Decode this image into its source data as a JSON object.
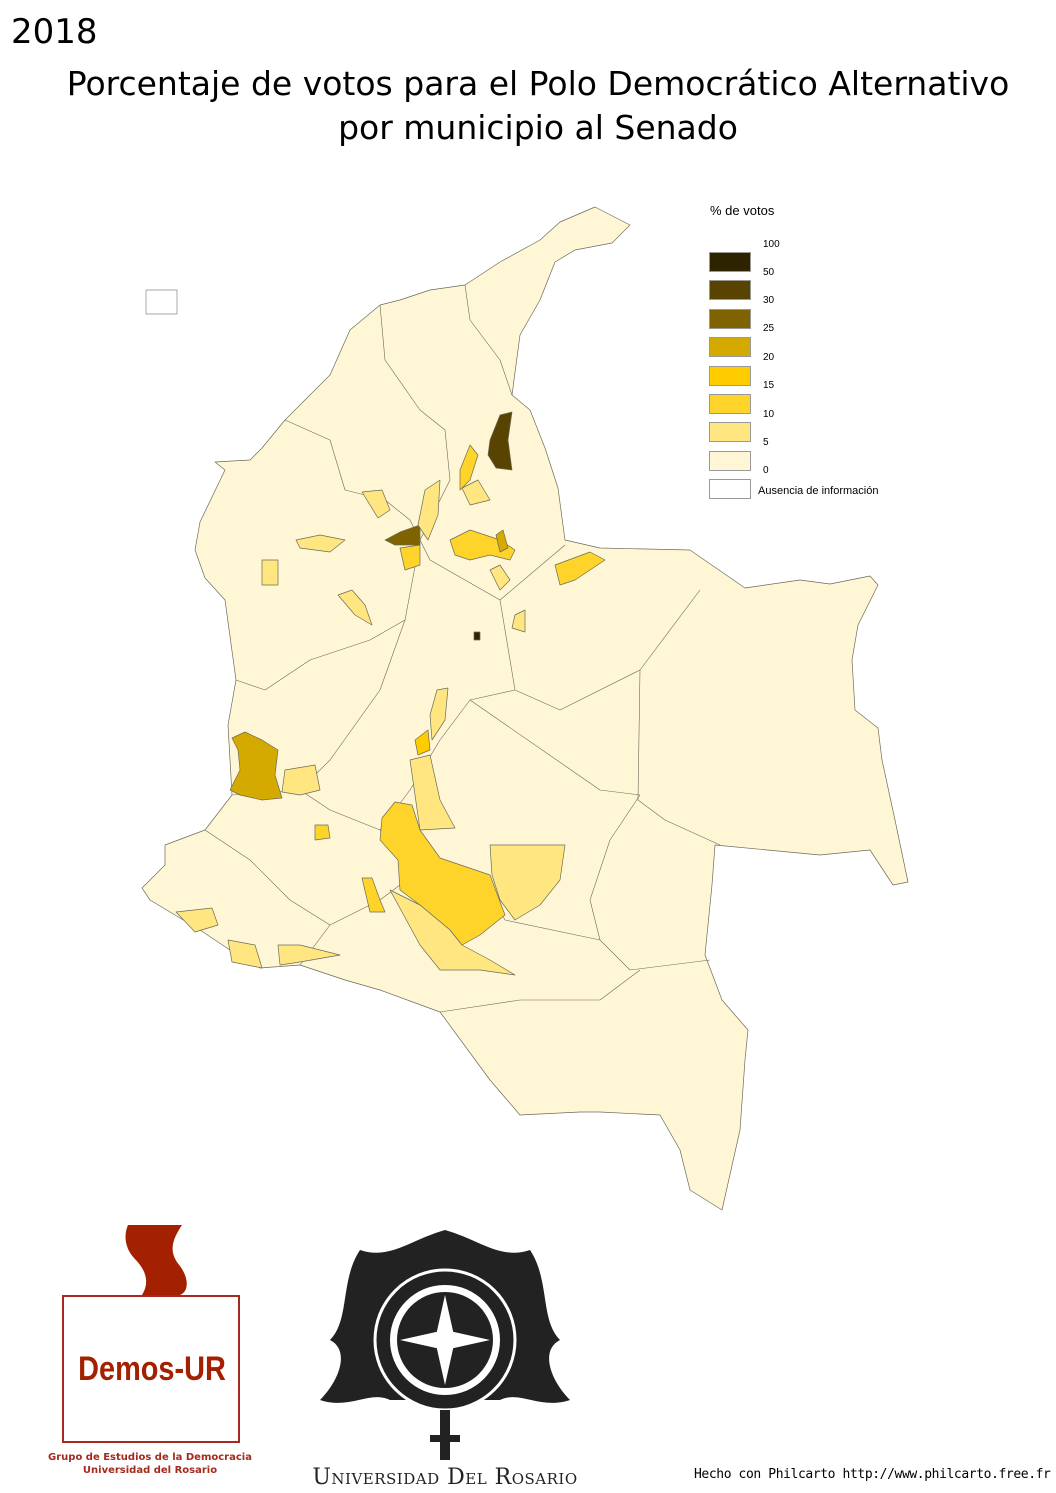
{
  "header": {
    "year": "2018",
    "title_line1": "Porcentaje de votos para el Polo Democrático Alternativo",
    "title_line2": "por municipio al Senado"
  },
  "legend": {
    "title": "% de votos",
    "breaks": [
      "100",
      "50",
      "30",
      "25",
      "20",
      "15",
      "10",
      "5",
      "0"
    ],
    "classes": [
      {
        "range": "50–100",
        "color": "#2e2300"
      },
      {
        "range": "30–50",
        "color": "#584400"
      },
      {
        "range": "25–30",
        "color": "#7f6300"
      },
      {
        "range": "20–25",
        "color": "#d4aa00"
      },
      {
        "range": "15–20",
        "color": "#ffcc00"
      },
      {
        "range": "10–15",
        "color": "#ffd42a"
      },
      {
        "range": "5–10",
        "color": "#ffe680"
      },
      {
        "range": "0–5",
        "color": "#fff6d5"
      }
    ],
    "no_data_label": "Ausencia de información",
    "no_data_color": "#ffffff"
  },
  "logos": {
    "demos_wordmark": "Demos-UR",
    "demos_line1": "Grupo de Estudios de la Democracia",
    "demos_line2": "Universidad del Rosario",
    "university_name": "Universidad Del Rosario"
  },
  "footer": {
    "credit": "Hecho con Philcarto http://www.philcarto.free.fr"
  }
}
